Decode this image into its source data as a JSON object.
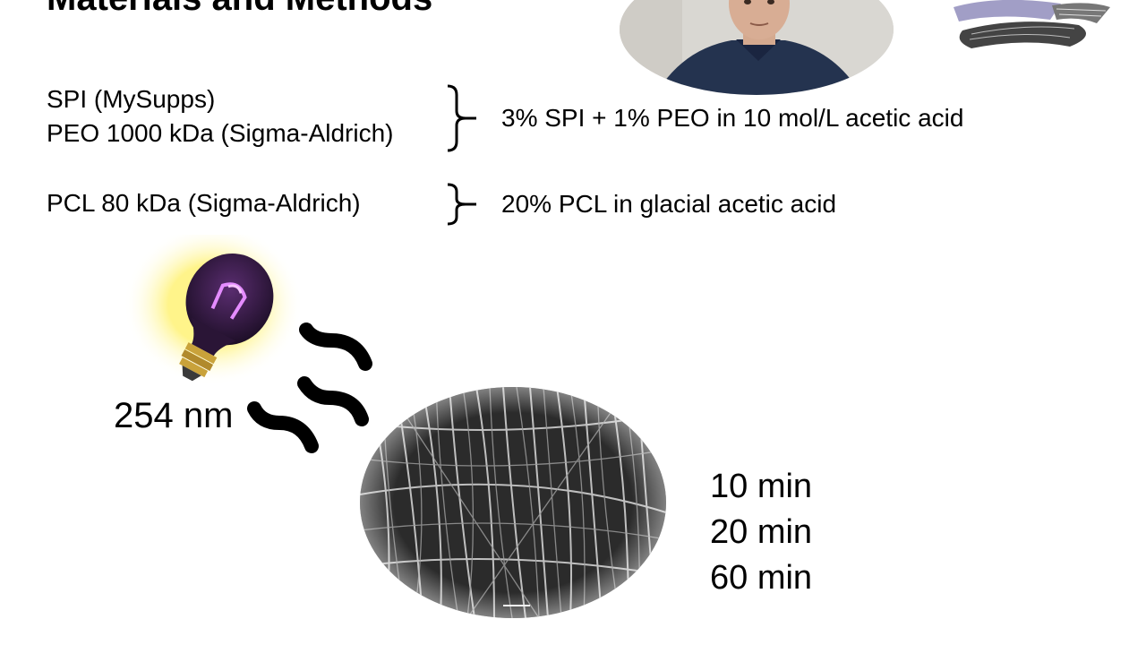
{
  "slide": {
    "title": "Materials and Methods",
    "materials": [
      "SPI (MySupps)",
      "PEO 1000 kDa (Sigma-Aldrich)",
      "PCL 80 kDa (Sigma-Aldrich)"
    ],
    "solutions": [
      "3% SPI + 1% PEO in 10 mol/L acetic acid",
      "20% PCL in glacial acetic acid"
    ],
    "wavelength": "254 nm",
    "times": [
      "10 min",
      "20 min",
      "60 min"
    ]
  },
  "colors": {
    "bulb_glow": "#fff59a",
    "bulb_glass": "#3a1d4a",
    "filament": "#e48cff",
    "bulb_base": "#c9a23a"
  },
  "icons": [
    "uv-lamp-icon",
    "radiation-wave-icon",
    "sem-fiber-image",
    "webcam-presenter",
    "corner-logo"
  ]
}
